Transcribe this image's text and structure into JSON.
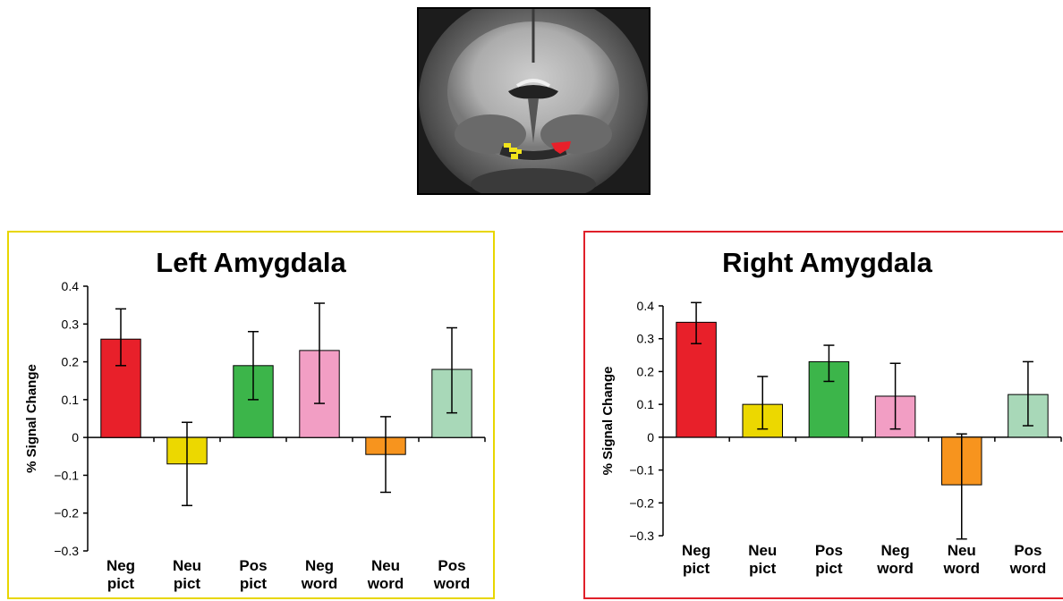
{
  "chart_data": [
    {
      "type": "bar",
      "title": "Left Amygdala",
      "ylabel": "% Signal Change",
      "xlabel": "",
      "categories": [
        [
          "Neg",
          "pict"
        ],
        [
          "Neu",
          "pict"
        ],
        [
          "Pos",
          "pict"
        ],
        [
          "Neg",
          "word"
        ],
        [
          "Neu",
          "word"
        ],
        [
          "Pos",
          "word"
        ]
      ],
      "values": [
        0.26,
        -0.07,
        0.19,
        0.23,
        -0.045,
        0.18
      ],
      "error_low": [
        0.19,
        -0.18,
        0.1,
        0.09,
        -0.145,
        0.065
      ],
      "error_high": [
        0.34,
        0.04,
        0.28,
        0.355,
        0.055,
        0.29
      ],
      "colors": [
        "#e8202a",
        "#ecd800",
        "#3cb54a",
        "#f29ec4",
        "#f7941e",
        "#a8d8b8"
      ],
      "ylim": [
        -0.3,
        0.4
      ],
      "yticks": [
        "0.4",
        "0.3",
        "0.2",
        "0.1",
        "0",
        "−0.1",
        "−0.2",
        "−0.3"
      ],
      "ytick_values": [
        0.4,
        0.3,
        0.2,
        0.1,
        0,
        -0.1,
        -0.2,
        -0.3
      ],
      "border_color": "#e8d600",
      "grid": false
    },
    {
      "type": "bar",
      "title": "Right Amygdala",
      "ylabel": "% Signal Change",
      "xlabel": "",
      "categories": [
        [
          "Neg",
          "pict"
        ],
        [
          "Neu",
          "pict"
        ],
        [
          "Pos",
          "pict"
        ],
        [
          "Neg",
          "word"
        ],
        [
          "Neu",
          "word"
        ],
        [
          "Pos",
          "word"
        ]
      ],
      "values": [
        0.35,
        0.1,
        0.23,
        0.125,
        -0.145,
        0.13
      ],
      "error_low": [
        0.285,
        0.025,
        0.17,
        0.025,
        -0.31,
        0.035
      ],
      "error_high": [
        0.41,
        0.185,
        0.28,
        0.225,
        0.01,
        0.23
      ],
      "colors": [
        "#e8202a",
        "#ecd800",
        "#3cb54a",
        "#f29ec4",
        "#f7941e",
        "#a8d8b8"
      ],
      "ylim": [
        -0.3,
        0.4
      ],
      "yticks": [
        "0.4",
        "0.3",
        "0.2",
        "0.1",
        "0",
        "−0.1",
        "−0.2",
        "−0.3"
      ],
      "ytick_values": [
        0.4,
        0.3,
        0.2,
        0.1,
        0,
        -0.1,
        -0.2,
        -0.3
      ],
      "border_color": "#e0202a",
      "grid": false
    }
  ],
  "brain_image": {
    "icon": "brain-coronal-slice-image",
    "left_roi_color": "#f2e41c",
    "right_roi_color": "#e8202a"
  }
}
